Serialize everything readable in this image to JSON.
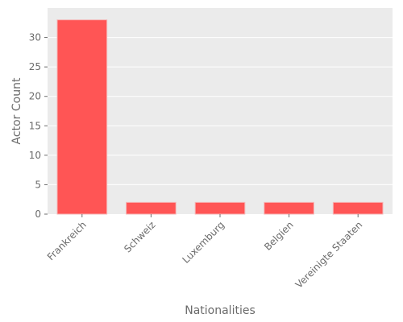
{
  "chart_data": {
    "type": "bar",
    "categories": [
      "Frankreich",
      "Schweiz",
      "Luxemburg",
      "Belgien",
      "Vereinigte Staaten"
    ],
    "values": [
      33,
      2,
      2,
      2,
      2
    ],
    "xlabel": "Nationalities",
    "ylabel": "Actor Count",
    "ylim": [
      0,
      35
    ],
    "yticks": [
      0,
      5,
      10,
      15,
      20,
      25,
      30
    ],
    "grid": true,
    "colors": {
      "bar": "#ff5555",
      "bar_edge": "#f6b7b7",
      "plot_background": "#ebebeb",
      "grid": "#ffffff",
      "text": "#6b6b6b"
    }
  }
}
